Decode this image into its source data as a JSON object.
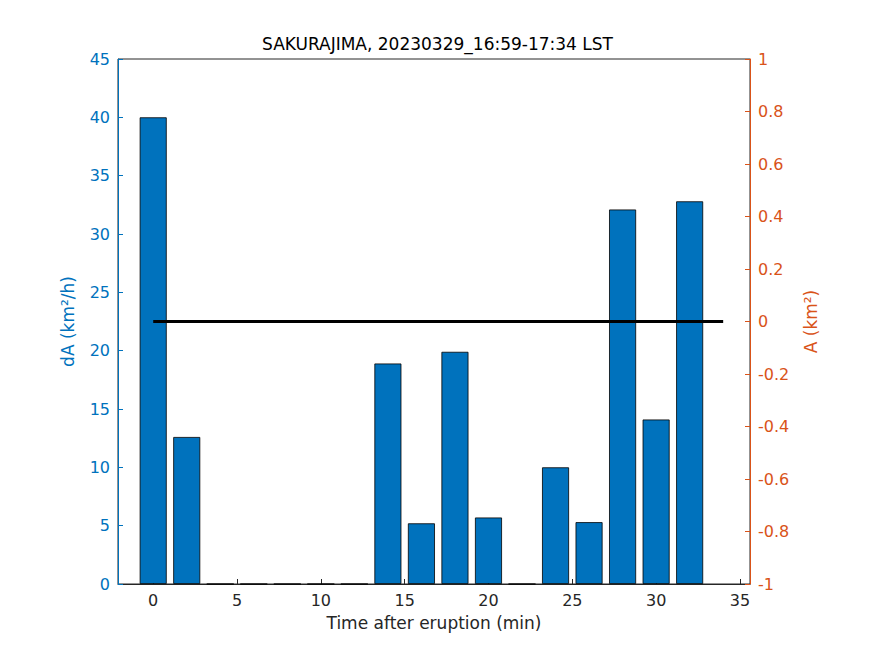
{
  "chart_data": {
    "type": "bar",
    "title": "SAKURAJIMA, 20230329_16:59-17:34 LST",
    "x_label": "Time after eruption (min)",
    "y_label": "dA (km²/h)",
    "y2_label": "A (km²)",
    "xlim": [
      -2.1,
      35.6
    ],
    "xticks": [
      0,
      5,
      10,
      15,
      20,
      25,
      30,
      35
    ],
    "ylim": [
      0,
      45
    ],
    "yticks": [
      0,
      5,
      10,
      15,
      20,
      25,
      30,
      35,
      40,
      45
    ],
    "y2lim": [
      -1,
      1
    ],
    "y2ticks": [
      -1,
      -0.8,
      -0.6,
      -0.4,
      -0.2,
      0,
      0.2,
      0.4,
      0.6,
      0.8,
      1
    ],
    "grid": false,
    "series": [
      {
        "type": "bar",
        "color": "#0072BD",
        "x": [
          0,
          2,
          4,
          6,
          8,
          10,
          12,
          14,
          16,
          18,
          20,
          22,
          24,
          26,
          28,
          30,
          32
        ],
        "values": [
          40.0,
          12.6,
          0,
          0,
          0,
          0,
          0,
          18.9,
          5.2,
          19.9,
          5.7,
          0,
          10.0,
          5.3,
          32.1,
          14.1,
          32.8
        ]
      },
      {
        "type": "line",
        "axis": "y2",
        "color": "#000000",
        "x": [
          0,
          2,
          4,
          6,
          8,
          10,
          12,
          14,
          16,
          18,
          20,
          22,
          24,
          26,
          28,
          30,
          32,
          34
        ],
        "values": [
          0,
          0,
          0,
          0,
          0,
          0,
          0,
          0,
          0,
          0,
          0,
          0,
          0,
          0,
          0,
          0,
          0,
          0
        ]
      }
    ]
  }
}
